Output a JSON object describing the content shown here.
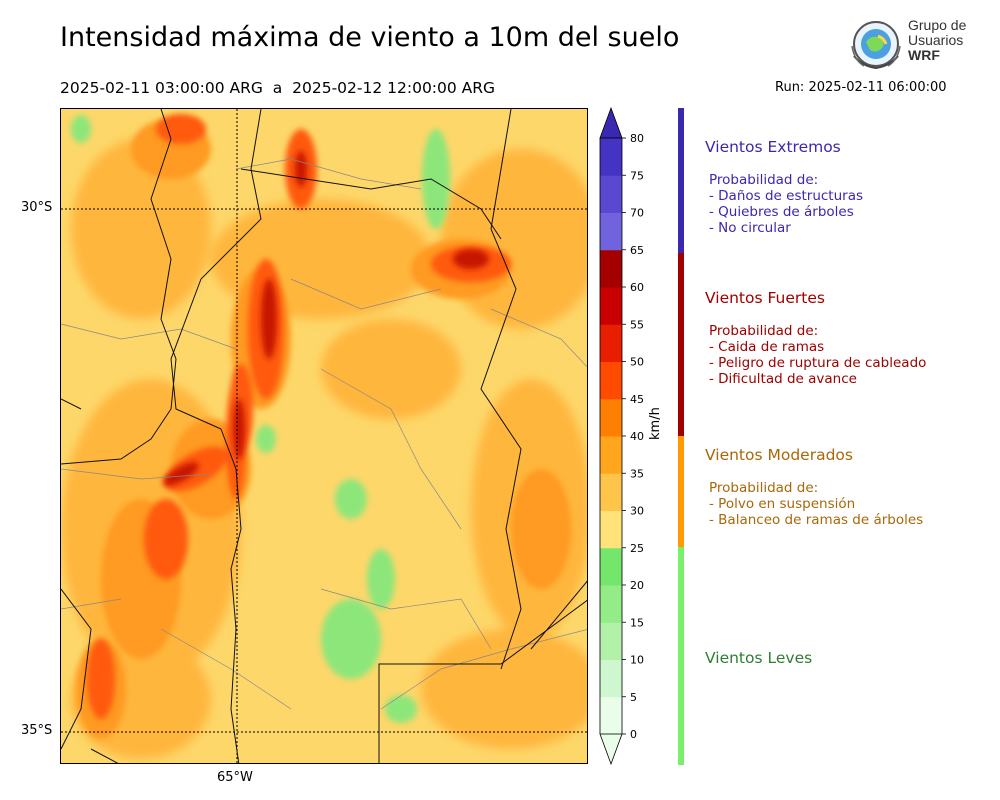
{
  "title": "Intensidad máxima de viento a 10m del suelo",
  "period": "2025-02-11 03:00:00 ARG  a  2025-02-12 12:00:00 ARG",
  "run": "Run: 2025-02-11 06:00:00",
  "logo": {
    "line1": "Grupo de",
    "line2": "Usuarios",
    "line3": "WRF"
  },
  "map": {
    "lat_labels": [
      "30°S",
      "35°S"
    ],
    "lon_labels": [
      "65°W"
    ]
  },
  "colorbar": {
    "unit": "km/h",
    "ticks": [
      0,
      5,
      10,
      15,
      20,
      25,
      30,
      35,
      40,
      45,
      50,
      55,
      60,
      65,
      70,
      75,
      80
    ],
    "colors": [
      "#eafcea",
      "#cff7cf",
      "#b2f2a8",
      "#93ec88",
      "#75e66c",
      "#ffe27a",
      "#ffc44a",
      "#ffa51e",
      "#ff7f00",
      "#ff4a00",
      "#e81e00",
      "#c80000",
      "#a50000",
      "#7163de",
      "#5a48d0",
      "#4533c3",
      "#3a28b2"
    ]
  },
  "categories": [
    {
      "name": "Vientos Extremos",
      "color": "#3b28b0",
      "bar_color": "#3b28b0",
      "text": [
        "Probabilidad de:",
        "- Daños de estructuras",
        "- Quiebres de árboles",
        "- No circular"
      ]
    },
    {
      "name": "Vientos Fuertes",
      "color": "#a00000",
      "bar_color": "#a00000",
      "text": [
        "Probabilidad de:",
        "- Caida de ramas",
        "- Peligro de ruptura de cableado",
        "- Dificultad de avance"
      ]
    },
    {
      "name": "Vientos Moderados",
      "color": "#a8680a",
      "bar_color": "#ff9a00",
      "text": [
        "Probabilidad de:",
        "- Polvo en suspensión",
        "- Balanceo de ramas de árboles"
      ]
    },
    {
      "name": "Vientos Leves",
      "color": "#2e7d32",
      "bar_color": "#78f06a",
      "text": []
    }
  ]
}
